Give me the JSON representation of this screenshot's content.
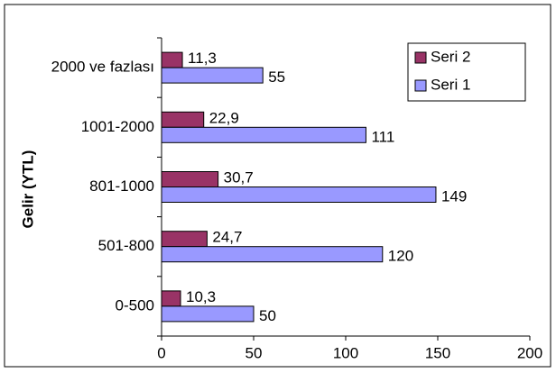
{
  "chart_data": {
    "type": "bar",
    "orientation": "horizontal",
    "y_label": "Gelir (YTL)",
    "categories": [
      "0-500",
      "501-800",
      "801-1000",
      "1001-2000",
      "2000 ve fazlası"
    ],
    "series": [
      {
        "name": "Seri 1",
        "color": "#9999ff",
        "values": [
          50,
          120,
          149,
          111,
          55
        ]
      },
      {
        "name": "Seri 2",
        "color": "#993366",
        "values": [
          10.3,
          24.7,
          30.7,
          22.9,
          11.3
        ],
        "value_labels": [
          "10,3",
          "24,7",
          "30,7",
          "22,9",
          "11,3"
        ]
      }
    ],
    "xlim": [
      0,
      200
    ],
    "xticks": [
      0,
      50,
      100,
      150,
      200
    ],
    "legend": "top-right"
  }
}
